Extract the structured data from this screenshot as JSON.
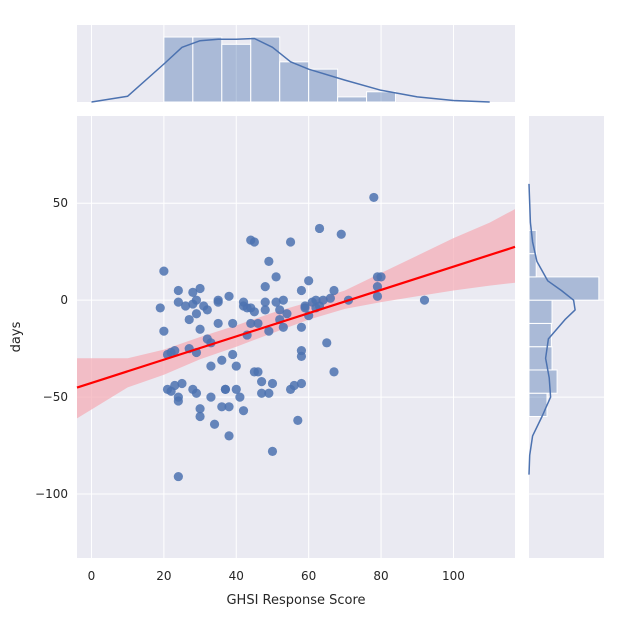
{
  "chart_data": {
    "type": "scatter",
    "subtype": "jointplot",
    "xlabel": "GHSI Response Score",
    "ylabel": "days",
    "xlim": [
      -4,
      117
    ],
    "ylim": [
      -133,
      95
    ],
    "xticks": [
      0,
      20,
      40,
      60,
      80,
      100
    ],
    "yticks": [
      -100,
      -50,
      0,
      50
    ],
    "grid": true,
    "background": "#eaeaf2",
    "colors": {
      "points": "#4c72b0",
      "regression_line": "#ff0000",
      "confidence_band": "#f4aeb7",
      "marginal": "#4c72b0"
    },
    "points": [
      [
        20,
        15
      ],
      [
        19,
        -4
      ],
      [
        20,
        -16
      ],
      [
        21,
        -28
      ],
      [
        22,
        -27
      ],
      [
        23,
        -26
      ],
      [
        21,
        -46
      ],
      [
        22,
        -47
      ],
      [
        23,
        -44
      ],
      [
        24,
        -50
      ],
      [
        24,
        -52
      ],
      [
        25,
        -43
      ],
      [
        24,
        -91
      ],
      [
        24,
        -1
      ],
      [
        24,
        5
      ],
      [
        26,
        -3
      ],
      [
        27,
        -10
      ],
      [
        27,
        -25
      ],
      [
        28,
        4
      ],
      [
        28,
        -2
      ],
      [
        29,
        0
      ],
      [
        29,
        -7
      ],
      [
        29,
        -27
      ],
      [
        30,
        6
      ],
      [
        30,
        -15
      ],
      [
        28,
        -46
      ],
      [
        29,
        -48
      ],
      [
        30,
        -56
      ],
      [
        30,
        -60
      ],
      [
        31,
        -3
      ],
      [
        32,
        -5
      ],
      [
        32,
        -20
      ],
      [
        33,
        -22
      ],
      [
        33,
        -34
      ],
      [
        33,
        -50
      ],
      [
        34,
        -64
      ],
      [
        35,
        0
      ],
      [
        35,
        -1
      ],
      [
        35,
        -12
      ],
      [
        36,
        -31
      ],
      [
        36,
        -55
      ],
      [
        37,
        -46
      ],
      [
        37,
        -46
      ],
      [
        38,
        -55
      ],
      [
        38,
        -70
      ],
      [
        38,
        2
      ],
      [
        39,
        -12
      ],
      [
        39,
        -28
      ],
      [
        40,
        -34
      ],
      [
        40,
        -46
      ],
      [
        41,
        -50
      ],
      [
        42,
        -1
      ],
      [
        42,
        -3
      ],
      [
        42,
        -57
      ],
      [
        43,
        -4
      ],
      [
        43,
        -18
      ],
      [
        44,
        31
      ],
      [
        44,
        -4
      ],
      [
        44,
        -12
      ],
      [
        45,
        30
      ],
      [
        45,
        -6
      ],
      [
        45,
        -37
      ],
      [
        46,
        -12
      ],
      [
        46,
        -37
      ],
      [
        47,
        -42
      ],
      [
        47,
        -48
      ],
      [
        48,
        7
      ],
      [
        48,
        -5
      ],
      [
        48,
        -1
      ],
      [
        49,
        -16
      ],
      [
        49,
        20
      ],
      [
        49,
        -48
      ],
      [
        50,
        -43
      ],
      [
        50,
        -78
      ],
      [
        51,
        12
      ],
      [
        51,
        -1
      ],
      [
        52,
        -5
      ],
      [
        52,
        -10
      ],
      [
        53,
        0
      ],
      [
        53,
        -14
      ],
      [
        54,
        -7
      ],
      [
        55,
        30
      ],
      [
        55,
        -46
      ],
      [
        56,
        -44
      ],
      [
        57,
        -62
      ],
      [
        58,
        -43
      ],
      [
        58,
        -26
      ],
      [
        58,
        -29
      ],
      [
        58,
        -14
      ],
      [
        58,
        5
      ],
      [
        59,
        -4
      ],
      [
        59,
        -3
      ],
      [
        60,
        10
      ],
      [
        60,
        -8
      ],
      [
        61,
        -1
      ],
      [
        62,
        0
      ],
      [
        62,
        -4
      ],
      [
        63,
        -3
      ],
      [
        63,
        37
      ],
      [
        64,
        0
      ],
      [
        65,
        -22
      ],
      [
        66,
        1
      ],
      [
        67,
        5
      ],
      [
        67,
        -37
      ],
      [
        69,
        34
      ],
      [
        71,
        0
      ],
      [
        78,
        53
      ],
      [
        79,
        12
      ],
      [
        79,
        7
      ],
      [
        79,
        2
      ],
      [
        80,
        12
      ],
      [
        92,
        0
      ]
    ],
    "regression": {
      "slope": 0.6,
      "intercept": -42.7,
      "x_range": [
        -4,
        117
      ]
    },
    "confidence_band": {
      "x": [
        -4,
        10,
        20,
        30,
        40,
        50,
        60,
        70,
        80,
        90,
        100,
        110,
        117
      ],
      "lower": [
        -61,
        -45,
        -38.5,
        -30.5,
        -24,
        -17,
        -10,
        -4.5,
        -1,
        2,
        5,
        7.5,
        9
      ],
      "upper": [
        -30,
        -30,
        -25.5,
        -19,
        -13,
        -6.5,
        -1,
        5,
        14,
        23,
        32,
        40,
        47
      ]
    },
    "x_histogram": {
      "bin_edges": [
        20,
        28,
        36,
        44,
        52,
        60,
        68,
        76,
        84
      ],
      "heights": [
        0.89,
        0.89,
        0.79,
        0.89,
        0.55,
        0.45,
        0.07,
        0.14
      ]
    },
    "x_kde": {
      "x": [
        0,
        10,
        20,
        25,
        30,
        35,
        40,
        45,
        50,
        55,
        60,
        70,
        80,
        90,
        100,
        110
      ],
      "density": [
        0,
        0.08,
        0.52,
        0.75,
        0.84,
        0.86,
        0.86,
        0.87,
        0.75,
        0.55,
        0.45,
        0.3,
        0.16,
        0.07,
        0.02,
        0
      ]
    },
    "y_histogram": {
      "bin_edges": [
        -60,
        -48,
        -36,
        -24,
        -12,
        0,
        12,
        24,
        36
      ],
      "widths": [
        0.25,
        0.39,
        0.32,
        0.31,
        0.32,
        0.97,
        0.1,
        0.1
      ]
    },
    "y_kde": {
      "y": [
        -90,
        -80,
        -70,
        -60,
        -50,
        -40,
        -30,
        -20,
        -10,
        -5,
        0,
        5,
        10,
        20,
        30,
        40,
        50,
        60
      ],
      "density": [
        0,
        0.01,
        0.05,
        0.18,
        0.3,
        0.28,
        0.23,
        0.27,
        0.5,
        0.64,
        0.62,
        0.45,
        0.26,
        0.11,
        0.05,
        0.02,
        0.01,
        0
      ]
    }
  }
}
